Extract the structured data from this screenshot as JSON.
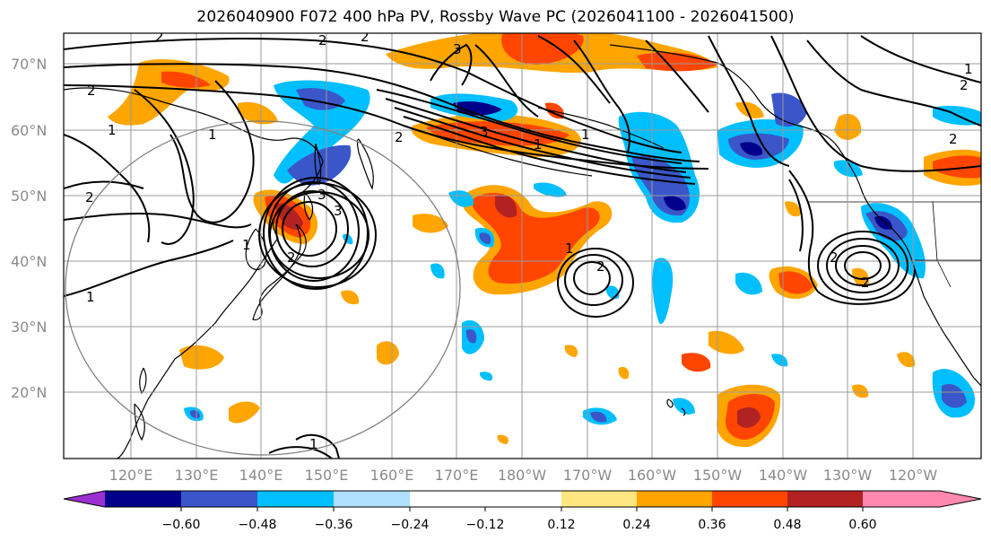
{
  "title": "2026040900 F072 400 hPa PV, Rossby Wave PC (2026041100 - 2026041500)",
  "lat_labels": [
    "70°N",
    "60°N",
    "50°N",
    "40°N",
    "30°N",
    "20°N"
  ],
  "lon_labels": [
    "120°E",
    "130°E",
    "140°E",
    "150°E",
    "160°E",
    "170°E",
    "180°W",
    "170°W",
    "160°W",
    "150°W",
    "140°W",
    "130°W",
    "120°W"
  ],
  "colorbar": {
    "ticks": [
      "−0.60",
      "−0.48",
      "−0.36",
      "−0.24",
      "−0.12",
      "0.12",
      "0.24",
      "0.36",
      "0.48",
      "0.60"
    ],
    "colors": {
      "below": "#9b30d0",
      "n060": "#00008b",
      "n048": "#3a56c8",
      "n036": "#00bfff",
      "n024": "#b0e0ff",
      "zero": "#ffffff",
      "p012": "#ffe680",
      "p024": "#ffa500",
      "p036": "#ff4500",
      "p048": "#b22222",
      "above": "#ff88b0"
    }
  },
  "pv_contour_labels": [
    "2",
    "2",
    "2",
    "2",
    "2",
    "2",
    "2",
    "2",
    "2",
    "2",
    "3",
    "3",
    "1",
    "1",
    "1",
    "1",
    "1",
    "1",
    "1",
    "1",
    "2",
    "2",
    "3",
    "3",
    "1"
  ]
}
